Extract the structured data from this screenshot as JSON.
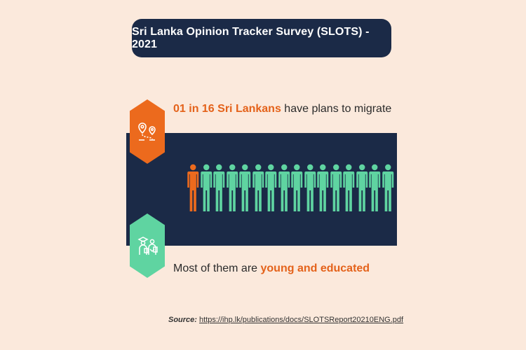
{
  "title": "Sri Lanka Opinion Tracker Survey (SLOTS) - 2021",
  "migration_stat": {
    "highlight": "01 in 16 Sri Lankans",
    "rest": " have plans to migrate",
    "ratio_migrating": 1,
    "ratio_total": 16
  },
  "profile_stat": {
    "prefix": "Most of them are ",
    "highlight": "young and educated"
  },
  "source": {
    "label": "Source:",
    "url": "https://ihp.lk/publications/docs/SLOTSReport20210ENG.pdf"
  },
  "icons": {
    "migration": "map-pin-route-icon",
    "profile": "graduate-students-icon",
    "person": "person-icon"
  },
  "colors": {
    "background": "#fbe9dc",
    "navy": "#1b2a47",
    "orange": "#ec6a1d",
    "green": "#5fd4a1"
  }
}
